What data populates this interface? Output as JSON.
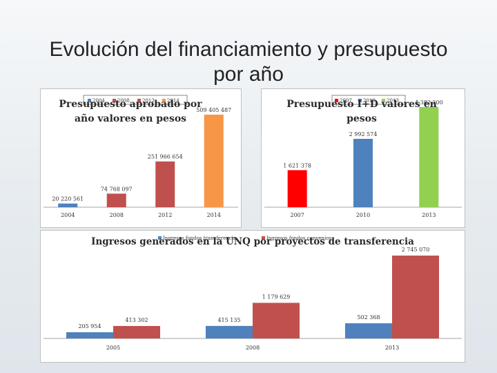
{
  "slide": {
    "title_line1": "Evolución del financiamiento y presupuesto",
    "title_line2": "por año"
  },
  "chart_data": [
    {
      "type": "bar",
      "title_line1": "Presupuesto aprobado por",
      "title_line2": "año valores en pesos",
      "categories": [
        "2004",
        "2008",
        "2012",
        "2014"
      ],
      "values": [
        20220561,
        74768097,
        251966654,
        509405487
      ],
      "value_labels": [
        "20 220 561",
        "74 768 097",
        "251 966 654",
        "509 405 487"
      ],
      "legend": [
        "2004",
        "2008",
        "2012",
        "2014"
      ],
      "colors": [
        "#4f81bd",
        "#c0504d",
        "#c0504d",
        "#f79646"
      ],
      "ylim": [
        0,
        509405487
      ]
    },
    {
      "type": "bar",
      "title_line1": "Presupuesto I+D valores en",
      "title_line2": "pesos",
      "categories": [
        "2007",
        "2010",
        "2013"
      ],
      "values": [
        1621378,
        2992574,
        4382200
      ],
      "value_labels": [
        "1 621 378",
        "2 992 574",
        "4 382 200"
      ],
      "legend": [
        "2007",
        "2010",
        "2013"
      ],
      "colors": [
        "#ff0000",
        "#4f81bd",
        "#92d050"
      ],
      "ylim": [
        0,
        4382200
      ]
    },
    {
      "type": "bar",
      "title": "Ingresos generados en la UNQ por proyectos de transferencia",
      "categories": [
        "2005",
        "2008",
        "2013"
      ],
      "series": [
        {
          "name": "Ingresos fondos transferencia",
          "values": [
            205954,
            415135,
            502368
          ]
        },
        {
          "name": "Ingresos fondos convenios",
          "values": [
            413302,
            1179629,
            2745070
          ]
        }
      ],
      "value_labels": [
        [
          "205 954",
          "415 135",
          "502 368"
        ],
        [
          "413 302",
          "1 179 629",
          "2 745 070"
        ]
      ],
      "colors": [
        "#4f81bd",
        "#c0504d"
      ],
      "ylim": [
        0,
        2745070
      ]
    }
  ]
}
